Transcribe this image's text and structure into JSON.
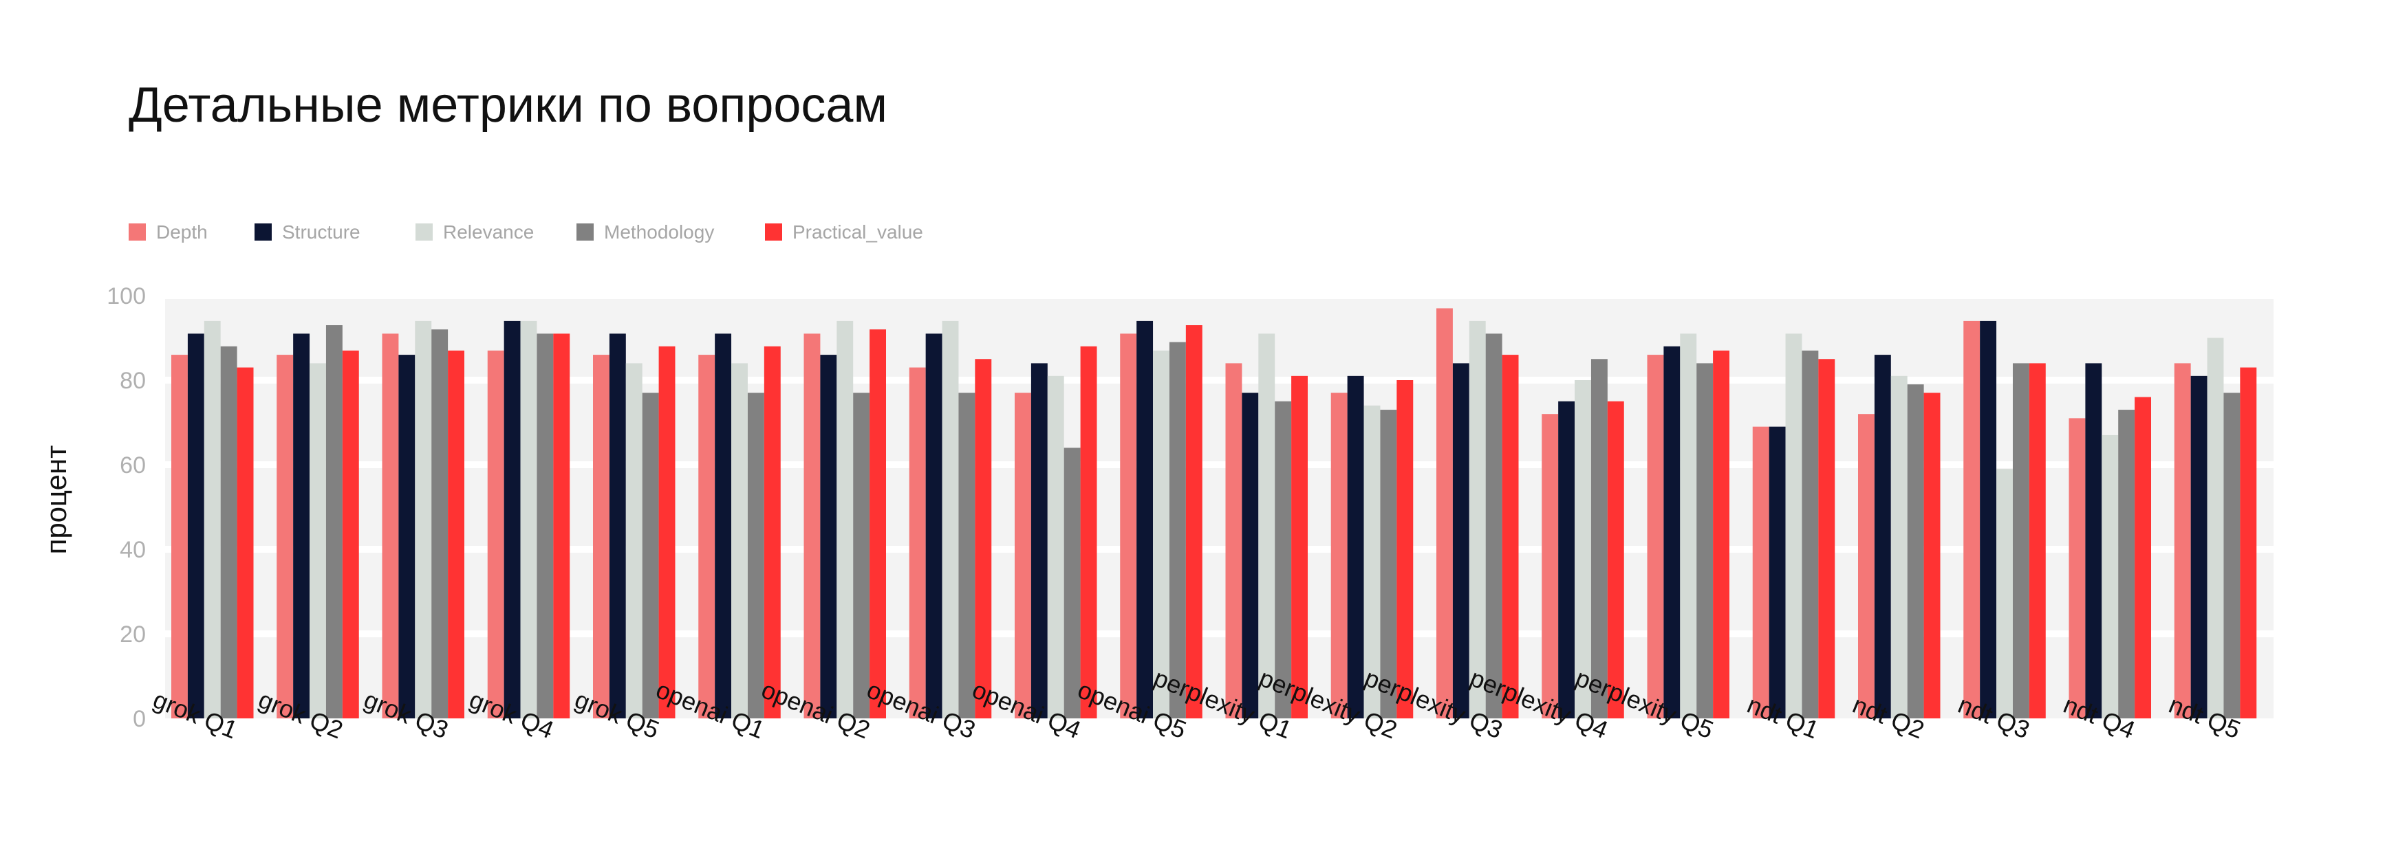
{
  "chart_data": {
    "type": "bar",
    "title": "Детальные метрики по вопросам",
    "ylabel": "процент",
    "xlabel": "",
    "ylim": [
      0,
      100
    ],
    "yticks": [
      0,
      20,
      40,
      60,
      80,
      100
    ],
    "grid": true,
    "legend_position": "top-left",
    "categories": [
      "grok Q1",
      "grok Q2",
      "grok Q3",
      "grok Q4",
      "grok Q5",
      "openai Q1",
      "openai Q2",
      "openai Q3",
      "openai Q4",
      "openai Q5",
      "perplexity Q1",
      "perplexity Q2",
      "perplexity Q3",
      "perplexity Q4",
      "perplexity Q5",
      "ndt Q1",
      "ndt Q2",
      "ndt Q3",
      "ndt Q4",
      "ndt Q5"
    ],
    "series": [
      {
        "name": "Depth",
        "color": "#f47777",
        "values": [
          86,
          86,
          91,
          87,
          86,
          86,
          91,
          83,
          77,
          91,
          84,
          77,
          97,
          72,
          86,
          69,
          72,
          94,
          71,
          84
        ]
      },
      {
        "name": "Structure",
        "color": "#0c1533",
        "values": [
          91,
          91,
          86,
          94,
          91,
          91,
          86,
          91,
          84,
          94,
          77,
          81,
          84,
          75,
          88,
          69,
          86,
          94,
          84,
          81
        ]
      },
      {
        "name": "Relevance",
        "color": "#d4dbd6",
        "values": [
          94,
          84,
          94,
          94,
          84,
          84,
          94,
          94,
          81,
          87,
          91,
          74,
          94,
          80,
          91,
          91,
          81,
          59,
          67,
          90
        ]
      },
      {
        "name": "Methodology",
        "color": "#818181",
        "values": [
          88,
          93,
          92,
          91,
          77,
          77,
          77,
          77,
          64,
          89,
          75,
          73,
          91,
          85,
          84,
          87,
          79,
          84,
          73,
          77
        ]
      },
      {
        "name": "Practical_value",
        "color": "#ff3333",
        "values": [
          83,
          87,
          87,
          91,
          88,
          88,
          92,
          85,
          88,
          93,
          81,
          80,
          86,
          75,
          87,
          85,
          77,
          84,
          76,
          83
        ]
      }
    ]
  }
}
